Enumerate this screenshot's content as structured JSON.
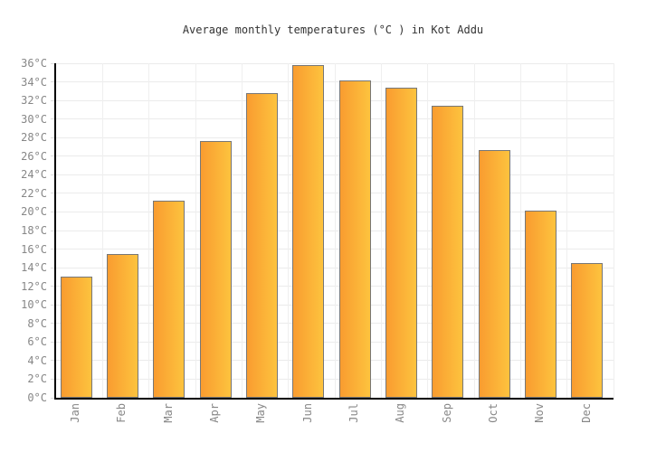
{
  "title": "Average monthly temperatures (°C ) in Kot Addu",
  "chart_data": {
    "type": "bar",
    "title": "Average monthly temperatures (°C ) in Kot Addu",
    "categories": [
      "Jan",
      "Feb",
      "Mar",
      "Apr",
      "May",
      "Jun",
      "Jul",
      "Aug",
      "Sep",
      "Oct",
      "Nov",
      "Dec"
    ],
    "values": [
      13,
      15.5,
      21.2,
      27.6,
      32.8,
      35.8,
      34.2,
      33.4,
      31.4,
      26.7,
      20.1,
      14.5
    ],
    "xlabel": "",
    "ylabel": "",
    "ylim": [
      0,
      36
    ],
    "ytick_step": 2,
    "ytick_labels": [
      "0°C",
      "2°C",
      "4°C",
      "6°C",
      "8°C",
      "10°C",
      "12°C",
      "14°C",
      "16°C",
      "18°C",
      "20°C",
      "22°C",
      "24°C",
      "26°C",
      "28°C",
      "30°C",
      "32°C",
      "34°C",
      "36°C"
    ],
    "grid": true,
    "legend": "none",
    "colors": {
      "bar_gradient_start": "#F99C30",
      "bar_gradient_end": "#FDC33E",
      "bar_border": "#777777",
      "axis": "#000000",
      "gridline": "#ebebeb",
      "tick_label": "#878787",
      "title_text": "#333333",
      "background": "#ffffff"
    }
  }
}
